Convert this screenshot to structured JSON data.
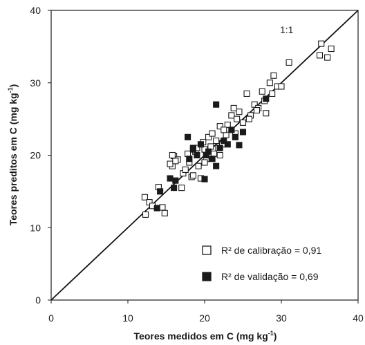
{
  "chart_data": {
    "type": "scatter",
    "title": "",
    "xlabel": "Teores medidos em C (mg kg",
    "ylabel": "Teores preditos em C (mg kg",
    "unit_superscript": "-1",
    "unit_close": ")",
    "xlim": [
      0,
      40
    ],
    "ylim": [
      0,
      40
    ],
    "xticks": [
      "0",
      "10",
      "20",
      "30",
      "40"
    ],
    "yticks": [
      "0",
      "10",
      "20",
      "30",
      "40"
    ],
    "grid": false,
    "legend_position": "bottom-right",
    "annotation": "1:1",
    "reference_line": {
      "from": [
        0,
        0
      ],
      "to": [
        40,
        40
      ]
    },
    "series": [
      {
        "name": "R² de calibração = 0,91",
        "marker": "open-square",
        "color": "#1a1a1a",
        "x": [
          12.2,
          12.3,
          12.8,
          13.2,
          14.0,
          14.5,
          14.8,
          15.8,
          16.0,
          16.5,
          17.0,
          17.2,
          17.5,
          18.0,
          18.3,
          18.8,
          19.0,
          19.5,
          20.0,
          20.2,
          20.5,
          20.8,
          21.0,
          21.5,
          22.0,
          22.3,
          22.8,
          23.0,
          23.5,
          24.0,
          24.5,
          25.0,
          25.5,
          26.0,
          26.5,
          27.0,
          27.5,
          28.0,
          28.5,
          29.0,
          29.5,
          30.0,
          31.0,
          35.0,
          35.2,
          36.0,
          36.5,
          15.5,
          15.8,
          16.2,
          18.5,
          19.2,
          20.0,
          21.2,
          22.5,
          24.2,
          25.8,
          26.8,
          27.8,
          28.8,
          19.8,
          23.8,
          21.8,
          17.8,
          22.0
        ],
        "y": [
          14.2,
          11.8,
          13.5,
          13.0,
          15.6,
          12.8,
          12.0,
          18.5,
          19.9,
          19.4,
          15.5,
          17.5,
          18.0,
          19.0,
          17.0,
          20.5,
          21.0,
          16.8,
          20.8,
          19.5,
          22.5,
          21.2,
          23.0,
          22.0,
          24.0,
          21.5,
          22.8,
          24.2,
          25.5,
          23.0,
          26.0,
          24.5,
          28.5,
          25.5,
          27.0,
          26.5,
          28.8,
          25.8,
          30.0,
          31.0,
          29.5,
          29.5,
          32.8,
          33.8,
          35.4,
          33.5,
          34.7,
          18.8,
          20.0,
          19.2,
          17.2,
          18.5,
          19.0,
          20.2,
          23.5,
          25.0,
          25.0,
          26.2,
          27.5,
          28.5,
          21.8,
          26.5,
          21.0,
          20.2,
          20.0
        ]
      },
      {
        "name": "R² de validação = 0,69",
        "marker": "filled-square",
        "color": "#1a1a1a",
        "x": [
          13.8,
          14.2,
          15.5,
          16.0,
          16.2,
          17.8,
          18.0,
          18.5,
          19.0,
          19.5,
          20.0,
          20.5,
          21.0,
          21.5,
          22.0,
          22.5,
          23.0,
          23.5,
          24.0,
          24.5,
          25.0,
          28.0,
          20.2,
          18.5,
          21.5
        ],
        "y": [
          12.7,
          15.0,
          16.8,
          15.5,
          16.5,
          22.5,
          19.5,
          21.0,
          20.0,
          21.5,
          16.7,
          20.5,
          19.5,
          27.0,
          21.0,
          22.0,
          21.5,
          23.5,
          22.5,
          21.4,
          23.2,
          27.8,
          20.0,
          20.8,
          18.5
        ]
      }
    ]
  }
}
